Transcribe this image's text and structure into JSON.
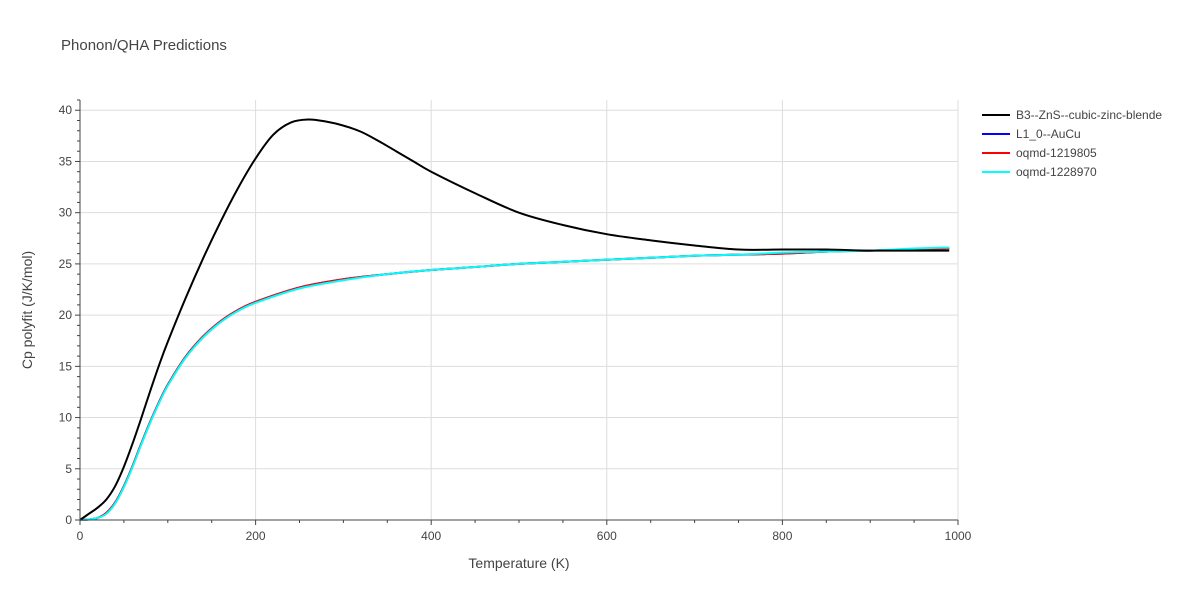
{
  "chart_data": {
    "type": "line",
    "title": "Phonon/QHA Predictions",
    "xlabel": "Temperature (K)",
    "ylabel": "Cp polyfit (J/K/mol)",
    "xlim": [
      0,
      1000
    ],
    "ylim": [
      0,
      41
    ],
    "xticks": [
      0,
      200,
      400,
      600,
      800,
      1000
    ],
    "yticks": [
      0,
      5,
      10,
      15,
      20,
      25,
      30,
      35,
      40
    ],
    "grid": true,
    "legend_position": "top-right",
    "series": [
      {
        "name": "B3--ZnS--cubic-zinc-blende",
        "color": "#000000",
        "x": [
          0,
          10,
          20,
          30,
          40,
          50,
          60,
          70,
          80,
          90,
          100,
          120,
          140,
          160,
          180,
          200,
          220,
          240,
          260,
          280,
          300,
          320,
          340,
          360,
          380,
          400,
          450,
          500,
          550,
          600,
          650,
          700,
          750,
          800,
          850,
          900,
          950,
          990
        ],
        "y": [
          0,
          0.6,
          1.2,
          2.0,
          3.3,
          5.2,
          7.5,
          10.0,
          12.6,
          15.1,
          17.4,
          21.6,
          25.5,
          29.1,
          32.4,
          35.3,
          37.6,
          38.8,
          39.1,
          38.9,
          38.5,
          37.9,
          37.0,
          36.0,
          35.0,
          34.0,
          31.9,
          30.0,
          28.8,
          27.9,
          27.3,
          26.8,
          26.4,
          26.4,
          26.4,
          26.3,
          26.3,
          26.3
        ]
      },
      {
        "name": "L1_0--AuCu",
        "color": "#0000ff",
        "x": [
          0,
          10,
          20,
          30,
          40,
          50,
          60,
          70,
          80,
          90,
          100,
          120,
          140,
          160,
          180,
          200,
          250,
          300,
          350,
          400,
          450,
          500,
          550,
          600,
          650,
          700,
          750,
          800,
          850,
          900,
          950,
          990
        ],
        "y": [
          0,
          0.05,
          0.2,
          0.7,
          1.7,
          3.3,
          5.3,
          7.5,
          9.6,
          11.5,
          13.2,
          15.9,
          17.9,
          19.4,
          20.5,
          21.3,
          22.7,
          23.5,
          24.0,
          24.4,
          24.7,
          25.0,
          25.2,
          25.4,
          25.6,
          25.8,
          25.9,
          26.0,
          26.2,
          26.3,
          26.4,
          26.5
        ]
      },
      {
        "name": "oqmd-1219805",
        "color": "#ff0000",
        "x": [
          0,
          10,
          20,
          30,
          40,
          50,
          60,
          70,
          80,
          90,
          100,
          120,
          140,
          160,
          180,
          200,
          250,
          300,
          350,
          400,
          450,
          500,
          550,
          600,
          650,
          700,
          750,
          800,
          850,
          900,
          950,
          990
        ],
        "y": [
          0,
          0.05,
          0.2,
          0.7,
          1.7,
          3.3,
          5.3,
          7.5,
          9.6,
          11.5,
          13.2,
          15.9,
          17.9,
          19.4,
          20.5,
          21.3,
          22.7,
          23.5,
          24.0,
          24.4,
          24.7,
          25.0,
          25.2,
          25.4,
          25.6,
          25.8,
          25.9,
          26.0,
          26.2,
          26.3,
          26.4,
          26.5
        ]
      },
      {
        "name": "oqmd-1228970",
        "color": "#00ffff",
        "x": [
          0,
          10,
          20,
          30,
          40,
          50,
          60,
          70,
          80,
          90,
          100,
          120,
          140,
          160,
          180,
          200,
          250,
          300,
          350,
          400,
          450,
          500,
          550,
          600,
          650,
          700,
          750,
          800,
          850,
          900,
          950,
          990
        ],
        "y": [
          0,
          0.05,
          0.2,
          0.6,
          1.6,
          3.2,
          5.2,
          7.4,
          9.5,
          11.4,
          13.1,
          15.8,
          17.8,
          19.3,
          20.4,
          21.2,
          22.6,
          23.4,
          24.0,
          24.4,
          24.7,
          25.0,
          25.2,
          25.4,
          25.6,
          25.8,
          25.9,
          26.1,
          26.2,
          26.3,
          26.5,
          26.6
        ]
      }
    ]
  }
}
